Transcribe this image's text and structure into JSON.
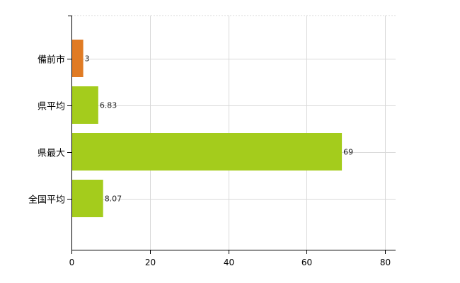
{
  "chart_data": {
    "type": "bar",
    "orientation": "horizontal",
    "categories": [
      "備前市",
      "県平均",
      "県最大",
      "全国平均"
    ],
    "values": [
      3,
      6.83,
      69,
      8.07
    ],
    "data_labels": [
      "3",
      "6.83",
      "69",
      "8.07"
    ],
    "bar_colors": [
      "#e07b24",
      "#a4cc1c",
      "#a4cc1c",
      "#a4cc1c"
    ],
    "xlim": [
      0,
      80
    ],
    "xticks": [
      0,
      20,
      40,
      60,
      80
    ],
    "xtick_labels": [
      "0",
      "20",
      "40",
      "60",
      "80"
    ],
    "grid": true,
    "title": "",
    "xlabel": "",
    "ylabel": ""
  }
}
